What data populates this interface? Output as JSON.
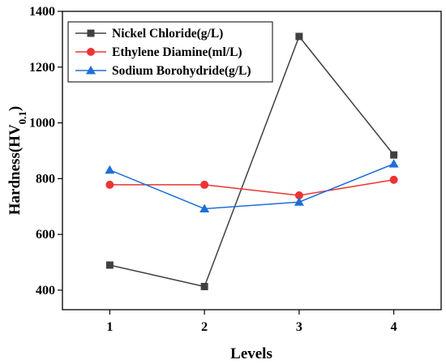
{
  "chart_data": {
    "type": "line",
    "xlabel": "Levels",
    "ylabel_main": "Hardness(HV",
    "ylabel_sub": "0.1",
    "ylabel_close": ")",
    "x": [
      1,
      2,
      3,
      4
    ],
    "xlim": [
      0.5,
      4.5
    ],
    "ylim": [
      330,
      1400
    ],
    "xticks": [
      "1",
      "2",
      "3",
      "4"
    ],
    "yticks": [
      400,
      600,
      800,
      1000,
      1200,
      1400
    ],
    "grid": false,
    "legend_position": "top-left",
    "series": [
      {
        "name": "Nickel Chloride(g/L)",
        "color": "#404040",
        "marker": "square",
        "values": [
          490,
          413,
          1310,
          885
        ]
      },
      {
        "name": "Ethylene Diamine(ml/L)",
        "color": "#ee3333",
        "marker": "circle",
        "values": [
          778,
          778,
          740,
          796
        ]
      },
      {
        "name": "Sodium Borohydride(g/L)",
        "color": "#1f6fd6",
        "marker": "triangle",
        "values": [
          831,
          692,
          716,
          853
        ]
      }
    ]
  }
}
